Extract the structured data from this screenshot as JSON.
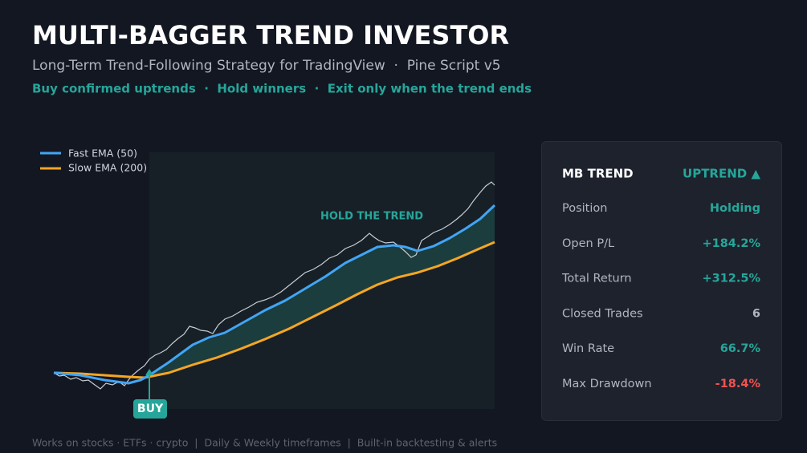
{
  "header": {
    "title": "MULTI-BAGGER TREND INVESTOR",
    "subtitle": "Long-Term Trend-Following Strategy for TradingView  ·  Pine Script v5",
    "tagline": "Buy confirmed uptrends  ·  Hold winners  ·  Exit only when the trend ends"
  },
  "chart": {
    "legend": [
      "Fast EMA (50)",
      "Slow EMA (200)"
    ],
    "annotation": "HOLD THE TREND",
    "buy_label": "BUY"
  },
  "panel": {
    "title": "MB TREND",
    "status": "UPTREND ▲",
    "rows": [
      [
        "Position",
        "Holding"
      ],
      [
        "Open P/L",
        "+184.2%"
      ],
      [
        "Total Return",
        "+312.5%"
      ],
      [
        "Closed Trades",
        "6"
      ],
      [
        "Win Rate",
        "66.7%"
      ],
      [
        "Max Drawdown",
        "-18.4%"
      ]
    ]
  },
  "footer": "Works on stocks · ETFs · crypto  |  Daily & Weekly timeframes  |  Built-in backtesting & alerts"
}
